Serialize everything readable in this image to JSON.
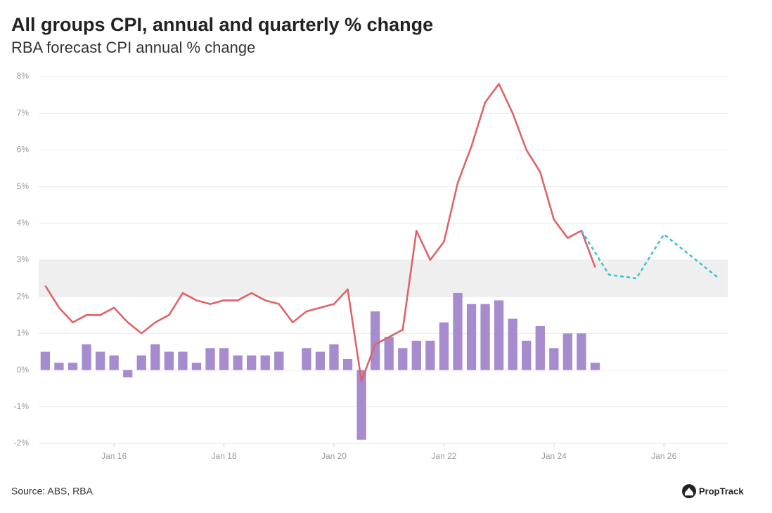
{
  "chart_data": {
    "type": "combo",
    "title": "All groups CPI, annual and quarterly % change",
    "subtitle": "RBA forecast CPI annual % change",
    "source": "Source: ABS, RBA",
    "brand": "PropTrack",
    "x": [
      2014.75,
      2015,
      2015.25,
      2015.5,
      2015.75,
      2016,
      2016.25,
      2016.5,
      2016.75,
      2017,
      2017.25,
      2017.5,
      2017.75,
      2018,
      2018.25,
      2018.5,
      2018.75,
      2019,
      2019.25,
      2019.5,
      2019.75,
      2020,
      2020.25,
      2020.5,
      2020.75,
      2021,
      2021.25,
      2021.5,
      2021.75,
      2022,
      2022.25,
      2022.5,
      2022.75,
      2023,
      2023.25,
      2023.5,
      2023.75,
      2024,
      2024.25,
      2024.5,
      2024.75
    ],
    "series": [
      {
        "type": "bar",
        "color": "#a78bcf",
        "values": [
          0.5,
          0.2,
          0.2,
          0.7,
          0.5,
          0.4,
          -0.2,
          0.4,
          0.7,
          0.5,
          0.5,
          0.2,
          0.6,
          0.6,
          0.4,
          0.4,
          0.4,
          0.5,
          0,
          0.6,
          0.5,
          0.7,
          0.3,
          -1.9,
          1.6,
          0.9,
          0.6,
          0.8,
          0.8,
          1.3,
          2.1,
          1.8,
          1.8,
          1.9,
          1.4,
          0.8,
          1.2,
          0.6,
          1.0,
          1.0,
          0.2
        ]
      },
      {
        "type": "line",
        "color": "#de6468",
        "values": [
          2.3,
          1.7,
          1.3,
          1.5,
          1.5,
          1.7,
          1.3,
          1.0,
          1.3,
          1.5,
          2.1,
          1.9,
          1.8,
          1.9,
          1.9,
          2.1,
          1.9,
          1.8,
          1.3,
          1.6,
          1.7,
          1.8,
          2.2,
          -0.3,
          0.7,
          0.9,
          1.1,
          3.8,
          3.0,
          3.5,
          5.1,
          6.1,
          7.3,
          7.8,
          7.0,
          6.0,
          5.4,
          4.1,
          3.6,
          3.8,
          2.8
        ]
      },
      {
        "type": "line",
        "color": "#3fc4cc",
        "dashed": true,
        "x": [
          2024.5,
          2025,
          2025.5,
          2026,
          2026.5,
          2027
        ],
        "values": [
          3.8,
          2.6,
          2.5,
          3.7,
          3.1,
          2.5
        ]
      }
    ],
    "band": [
      2,
      3
    ],
    "band_color": "#efefef",
    "xlim": [
      2014.63,
      2027.16
    ],
    "xticks": [
      {
        "value": 2016,
        "label": "Jan 16"
      },
      {
        "value": 2018,
        "label": "Jan 18"
      },
      {
        "value": 2020,
        "label": "Jan 20"
      },
      {
        "value": 2022,
        "label": "Jan 22"
      },
      {
        "value": 2024,
        "label": "Jan 24"
      },
      {
        "value": 2026,
        "label": "Jan 26"
      }
    ],
    "ylim": [
      -2,
      8
    ],
    "yticks": [
      {
        "value": -2,
        "label": "-2%"
      },
      {
        "value": -1,
        "label": "-1%"
      },
      {
        "value": 0,
        "label": "0%"
      },
      {
        "value": 1,
        "label": "1%"
      },
      {
        "value": 2,
        "label": "2%"
      },
      {
        "value": 3,
        "label": "3%"
      },
      {
        "value": 4,
        "label": "4%"
      },
      {
        "value": 5,
        "label": "5%"
      },
      {
        "value": 6,
        "label": "6%"
      },
      {
        "value": 7,
        "label": "7%"
      },
      {
        "value": 8,
        "label": "8%"
      }
    ],
    "grid": true
  }
}
